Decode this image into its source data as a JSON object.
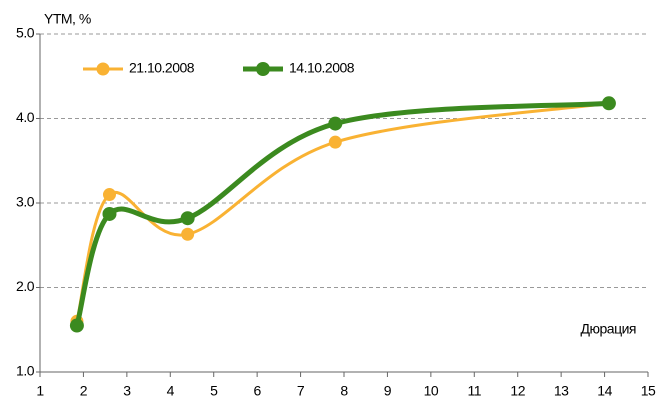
{
  "chart_data": {
    "type": "line",
    "y_label": "YTM, %",
    "x_label": "Дюрация",
    "x": [
      1.85,
      2.6,
      4.4,
      7.8,
      14.1
    ],
    "series": [
      {
        "name": "21.10.2008",
        "color": "#f9b233",
        "values": [
          1.6,
          3.1,
          2.63,
          3.72,
          4.18
        ]
      },
      {
        "name": "14.10.2008",
        "color": "#3b8a1f",
        "values": [
          1.55,
          2.87,
          2.82,
          3.94,
          4.18
        ]
      }
    ],
    "xlim": [
      1,
      15
    ],
    "xticks": [
      1,
      2,
      3,
      4,
      5,
      6,
      7,
      8,
      9,
      10,
      11,
      12,
      13,
      14,
      15
    ],
    "ylim": [
      1,
      5
    ],
    "yticks": [
      {
        "value": 1,
        "label": "1.0"
      },
      {
        "value": 2,
        "label": "2.0"
      },
      {
        "value": 3,
        "label": "3.0"
      },
      {
        "value": 4,
        "label": "4.0"
      },
      {
        "value": 5,
        "label": "5.0"
      }
    ],
    "grid": true,
    "legend": "upper left"
  }
}
